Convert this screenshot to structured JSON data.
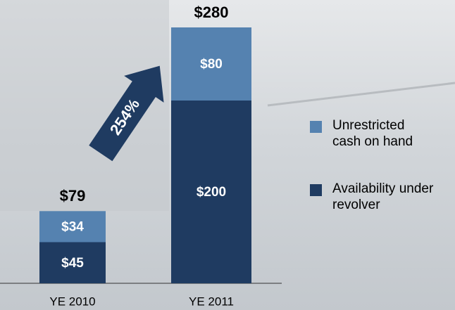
{
  "chart_data": {
    "type": "stacked_bar",
    "categories": [
      "YE 2010",
      "YE 2011"
    ],
    "series": [
      {
        "name": "Availability under revolver",
        "color": "#1f3b61",
        "values": [
          45,
          200
        ],
        "value_labels": [
          "$45",
          "$200"
        ]
      },
      {
        "name": "Unrestricted cash on hand",
        "color": "#5582b0",
        "values": [
          34,
          80
        ],
        "value_labels": [
          "$34",
          "$80"
        ]
      }
    ],
    "totals": {
      "values": [
        79,
        280
      ],
      "value_labels": [
        "$79",
        "$280"
      ]
    },
    "annotation": "254%"
  }
}
